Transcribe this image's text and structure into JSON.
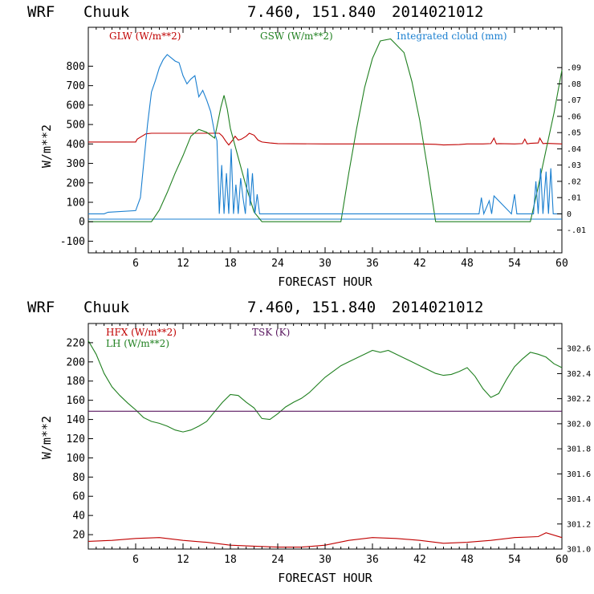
{
  "chart_data": [
    {
      "type": "line",
      "header": {
        "model": "WRF",
        "location": "Chuuk",
        "coords": "7.460, 151.840",
        "date": "2014021012"
      },
      "xlabel": "FORECAST HOUR",
      "ylabel": "W/m**2",
      "xlim": [
        0,
        60
      ],
      "ylim": [
        -160,
        1000
      ],
      "x_ticks": [
        6,
        12,
        18,
        24,
        30,
        36,
        42,
        48,
        54,
        60
      ],
      "y_ticks": [
        -100,
        0,
        100,
        200,
        300,
        400,
        500,
        600,
        700,
        800
      ],
      "y2lim": [
        -0.024,
        0.1148
      ],
      "y2_ticks": [
        -0.01,
        0,
        0.01,
        0.02,
        0.03,
        0.04,
        0.05,
        0.06,
        0.07,
        0.08,
        0.09
      ],
      "y2_tick_labels": [
        "-.01",
        "0",
        ".01",
        ".02",
        ".03",
        ".04",
        ".05",
        ".06",
        ".07",
        ".08",
        ".09"
      ],
      "series": [
        {
          "name": "GLW (W/m**2)",
          "axis": "left",
          "color": "#c00000",
          "x": [
            0,
            6,
            6.2,
            6.8,
            7.3,
            8,
            9,
            12,
            15,
            16.6,
            17,
            17.4,
            17.8,
            18.3,
            18.6,
            19,
            19.4,
            20,
            20.4,
            21,
            21.5,
            22,
            23,
            24,
            30,
            36,
            42,
            44,
            45,
            47,
            48,
            50,
            51,
            51.4,
            51.7,
            52,
            54,
            55,
            55.3,
            55.6,
            56,
            57,
            57.2,
            57.6,
            58,
            60
          ],
          "y": [
            410,
            410,
            425,
            440,
            452,
            455,
            455,
            455,
            455,
            455,
            440,
            415,
            395,
            420,
            440,
            420,
            425,
            440,
            455,
            445,
            420,
            410,
            405,
            402,
            400,
            400,
            400,
            398,
            395,
            397,
            400,
            400,
            402,
            430,
            400,
            402,
            400,
            402,
            425,
            400,
            403,
            405,
            430,
            402,
            403,
            400
          ]
        },
        {
          "name": "GSW (W/m**2)",
          "axis": "left",
          "color": "#208020",
          "x": [
            0,
            8,
            9,
            10,
            11,
            12,
            13,
            14,
            15,
            16,
            16.4,
            16.8,
            17.2,
            17.6,
            18,
            19,
            20,
            21,
            22,
            32,
            33,
            34,
            35,
            36,
            37,
            38.3,
            40,
            41,
            42,
            43,
            44,
            56,
            57,
            58,
            59,
            60
          ],
          "y": [
            0,
            0,
            60,
            150,
            250,
            340,
            440,
            475,
            460,
            430,
            510,
            590,
            650,
            580,
            480,
            330,
            180,
            50,
            0,
            0,
            250,
            480,
            690,
            840,
            930,
            940,
            870,
            720,
            520,
            270,
            0,
            0,
            180,
            370,
            560,
            780
          ]
        },
        {
          "name": "Integrated cloud (mm)",
          "axis": "right",
          "color": "#1a7fd0",
          "x": [
            0,
            2,
            2.5,
            6,
            6.6,
            7,
            7.5,
            8,
            8.5,
            9,
            9.5,
            10,
            10.5,
            11,
            11.5,
            12,
            12.5,
            13,
            13.5,
            14,
            14.5,
            15,
            15.5,
            16,
            16.3,
            16.6,
            16.9,
            17.2,
            17.5,
            17.8,
            18.1,
            18.4,
            18.7,
            19,
            19.3,
            19.6,
            19.9,
            20.2,
            20.5,
            20.8,
            21.1,
            21.4,
            21.7,
            49.5,
            49.8,
            50.1,
            50.8,
            51.1,
            51.4,
            53.6,
            54,
            54.3,
            56.4,
            56.7,
            57,
            57.3,
            57.6,
            58,
            58.3,
            58.6,
            58.9,
            60
          ],
          "y": [
            0,
            0,
            0.001,
            0.002,
            0.01,
            0.03,
            0.055,
            0.075,
            0.082,
            0.09,
            0.095,
            0.098,
            0.096,
            0.094,
            0.093,
            0.085,
            0.08,
            0.083,
            0.085,
            0.072,
            0.076,
            0.07,
            0.063,
            0.05,
            0.045,
            0.0,
            0.03,
            0.0,
            0.025,
            0.0,
            0.04,
            0.0,
            0.018,
            0.0,
            0.022,
            0.01,
            0.0,
            0.028,
            0.005,
            0.025,
            0.0,
            0.012,
            0.0,
            0.0,
            0.01,
            0.0,
            0.008,
            0.0,
            0.011,
            0.0,
            0.012,
            0.0,
            0.0,
            0.02,
            0.0,
            0.028,
            0.0,
            0.026,
            0.0,
            0.028,
            0.0,
            0.0
          ]
        }
      ]
    },
    {
      "type": "line",
      "header": {
        "model": "WRF",
        "location": "Chuuk",
        "coords": "7.460, 151.840",
        "date": "2014021012"
      },
      "xlabel": "FORECAST HOUR",
      "ylabel": "W/m**2",
      "xlim": [
        0,
        60
      ],
      "ylim": [
        5,
        240
      ],
      "x_ticks": [
        6,
        12,
        18,
        24,
        30,
        36,
        42,
        48,
        54,
        60
      ],
      "y_ticks": [
        20,
        40,
        60,
        80,
        100,
        120,
        140,
        160,
        180,
        200,
        220
      ],
      "y2lim": [
        301.0,
        302.8
      ],
      "y2_ticks": [
        301.0,
        301.2,
        301.4,
        301.6,
        301.8,
        302.0,
        302.2,
        302.4,
        302.6
      ],
      "y2_tick_labels": [
        "301.0",
        "301.2",
        "301.4",
        "301.6",
        "301.8",
        "302.0",
        "302.2",
        "302.4",
        "302.6"
      ],
      "series": [
        {
          "name": "HFX (W/m**2)",
          "axis": "left",
          "color": "#c00000",
          "x": [
            0,
            3,
            6,
            9,
            12,
            15,
            18,
            21,
            24,
            27,
            30,
            33,
            36,
            39,
            42,
            45,
            48,
            51,
            54,
            57,
            58,
            60
          ],
          "y": [
            13,
            14,
            16,
            17,
            14,
            12,
            9,
            8,
            7,
            7,
            9,
            14,
            17,
            16,
            14,
            11,
            12,
            14,
            17,
            18,
            22,
            17
          ]
        },
        {
          "name": "LH (W/m**2)",
          "axis": "left",
          "color": "#208020",
          "x": [
            0,
            1,
            2,
            3,
            4,
            5,
            6,
            7,
            8,
            9,
            10,
            11,
            12,
            13,
            14,
            15,
            16,
            17,
            18,
            19,
            20,
            21,
            22,
            23,
            24,
            25,
            26,
            27,
            28,
            29,
            30,
            31,
            32,
            33,
            34,
            35,
            36,
            37,
            38,
            39,
            40,
            41,
            42,
            43,
            44,
            45,
            46,
            47,
            48,
            49,
            50,
            51,
            52,
            53,
            54,
            55,
            56,
            57,
            58,
            59,
            60
          ],
          "y": [
            222,
            208,
            188,
            174,
            165,
            157,
            150,
            142,
            138,
            136,
            133,
            129,
            127,
            129,
            133,
            138,
            148,
            158,
            166,
            165,
            158,
            152,
            141,
            140,
            146,
            153,
            158,
            162,
            168,
            176,
            184,
            190,
            196,
            200,
            204,
            208,
            212,
            210,
            212,
            208,
            204,
            200,
            196,
            192,
            188,
            186,
            187,
            190,
            194,
            185,
            172,
            163,
            167,
            182,
            195,
            203,
            210,
            208,
            205,
            198,
            194
          ]
        },
        {
          "name": "TSK (K)",
          "axis": "right",
          "color": "#5a1860",
          "x": [
            0,
            60
          ],
          "y": [
            302.1,
            302.1
          ]
        }
      ]
    }
  ]
}
